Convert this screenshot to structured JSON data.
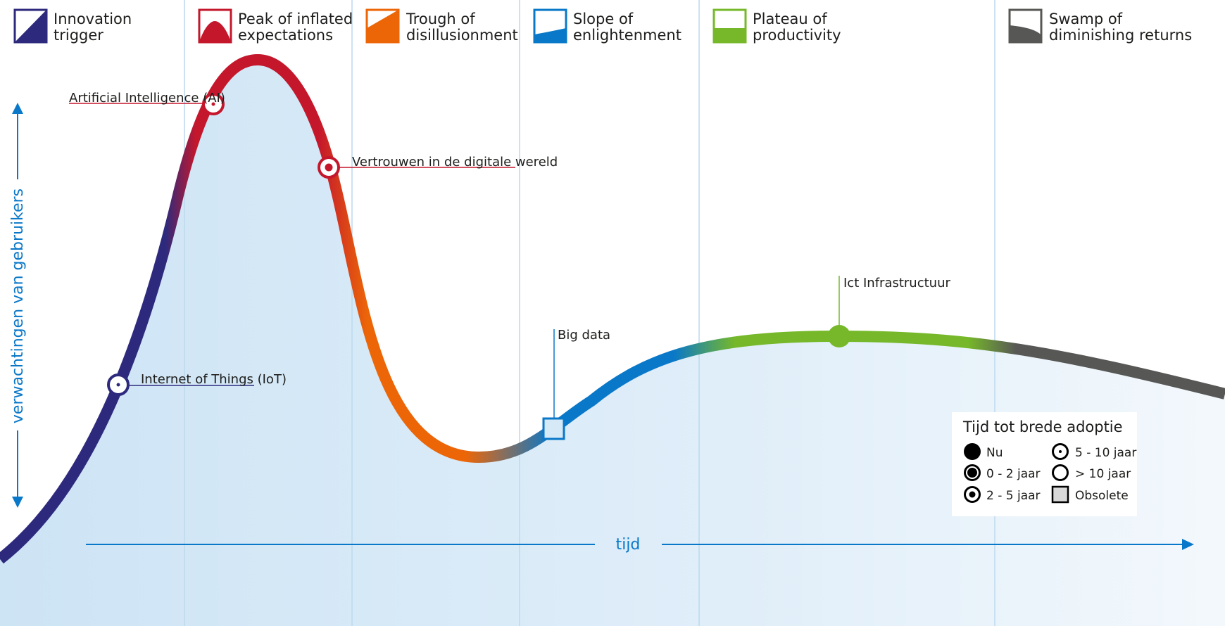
{
  "colors": {
    "navy": "#2d2a7d",
    "red": "#c4172c",
    "orange": "#ec6608",
    "blue": "#0a78c8",
    "green": "#76b82a",
    "grey": "#575756",
    "area": "#d6e9f6",
    "divider": "#bcd9ee"
  },
  "phases": [
    {
      "line1": "Innovation",
      "line2": "trigger",
      "icon": "innovation-trigger-icon"
    },
    {
      "line1": "Peak of inflated",
      "line2": "expectations",
      "icon": "peak-icon"
    },
    {
      "line1": "Trough of",
      "line2": "disillusionment",
      "icon": "trough-icon"
    },
    {
      "line1": "Slope of",
      "line2": "enlightenment",
      "icon": "slope-icon"
    },
    {
      "line1": "Plateau of",
      "line2": "productivity",
      "icon": "plateau-icon"
    },
    {
      "line1": "Swamp of",
      "line2": "diminishing returns",
      "icon": "swamp-icon"
    }
  ],
  "axes": {
    "y_label": "verwachtingen van gebruikers",
    "x_label": "tijd"
  },
  "items": [
    {
      "label": "Artificial Intelligence (AI)",
      "marker": "5 - 10 jaar",
      "phase": "Peak of inflated expectations"
    },
    {
      "label": "Vertrouwen in de digitale wereld",
      "marker": "2 - 5 jaar",
      "phase": "Peak of inflated expectations"
    },
    {
      "label": "Internet of Things (IoT)",
      "marker": "5 - 10 jaar",
      "phase": "Innovation trigger"
    },
    {
      "label": "Big data",
      "marker": "Obsolete",
      "phase": "Slope of enlightenment"
    },
    {
      "label": "Ict Infrastructuur",
      "marker": "Nu",
      "phase": "Plateau of productivity"
    }
  ],
  "legend": {
    "title": "Tijd tot brede adoptie",
    "entries": [
      {
        "label": "Nu",
        "marker": "filled-circle"
      },
      {
        "label": "0 - 2 jaar",
        "marker": "ring-large-dot"
      },
      {
        "label": "2 - 5 jaar",
        "marker": "ring-medium-dot"
      },
      {
        "label": "5 - 10 jaar",
        "marker": "ring-small-dot"
      },
      {
        "label": "> 10 jaar",
        "marker": "empty-ring"
      },
      {
        "label": "Obsolete",
        "marker": "square"
      }
    ]
  }
}
